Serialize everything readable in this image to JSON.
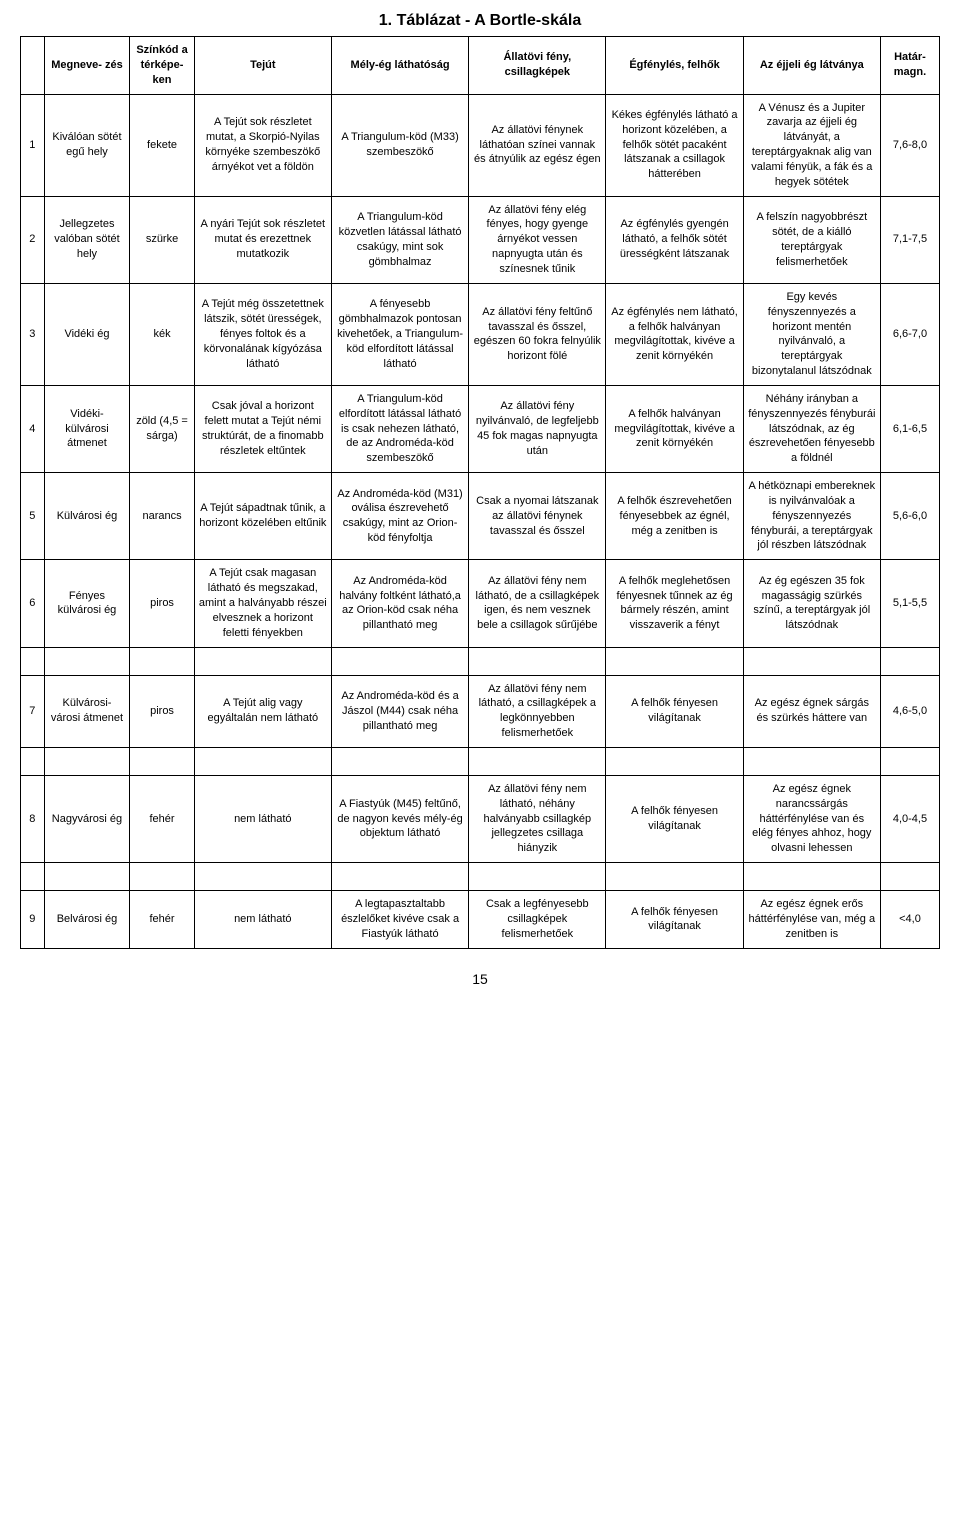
{
  "title": "1. Táblázat - A Bortle-skála",
  "page_number": "15",
  "columns": {
    "num": "",
    "name": "Megneve-\nzés",
    "color": "Színkód a térképe-\nken",
    "milky_way": "Tejút",
    "deep_sky": "Mély-ég láthatóság",
    "zodiacal": "Állatövi fény, csillagképek",
    "airglow": "Égfénylés, felhők",
    "night_sky": "Az éjjeli ég látványa",
    "mag": "Határ-\nmagn."
  },
  "rows": [
    {
      "num": "1",
      "name": "Kiválóan sötét egű hely",
      "color": "fekete",
      "milky_way": "A Tejút sok részletet mutat, a Skorpió-Nyilas környéke szembeszökő árnyékot vet a földön",
      "deep_sky": "A Triangulum-köd (M33) szembeszökő",
      "zodiacal": "Az állatövi fénynek láthatóan színei vannak és átnyúlik az egész égen",
      "airglow": "Kékes égfénylés látható a horizont közelében, a felhők sötét pacaként látszanak a csillagok hátterében",
      "night_sky": "A Vénusz és a Jupiter zavarja az éjjeli ég látványát, a tereptárgyaknak alig van valami fényük, a fák és a hegyek sötétek",
      "mag": "7,6-8,0"
    },
    {
      "num": "2",
      "name": "Jellegzetes valóban sötét hely",
      "color": "szürke",
      "milky_way": "A nyári Tejút sok részletet mutat és erezettnek mutatkozik",
      "deep_sky": "A Triangulum-köd közvetlen látással látható csakúgy, mint sok gömbhalmaz",
      "zodiacal": "Az állatövi fény elég fényes, hogy gyenge árnyékot vessen napnyugta után és színesnek tűnik",
      "airglow": "Az égfénylés gyengén látható, a felhők sötét ürességként látszanak",
      "night_sky": "A felszín nagyobbrészt sötét, de a kiálló tereptárgyak felismerhetőek",
      "mag": "7,1-7,5"
    },
    {
      "num": "3",
      "name": "Vidéki ég",
      "color": "kék",
      "milky_way": "A Tejút még összetettnek látszik, sötét ürességek, fényes foltok és a körvonalának kígyózása látható",
      "deep_sky": "A fényesebb gömbhalmazok pontosan kivehetőek, a Triangulum-köd elfordított látással látható",
      "zodiacal": "Az állatövi fény feltűnő tavasszal és ősszel, egészen 60 fokra felnyúlik horizont fölé",
      "airglow": "Az égfénylés nem látható, a felhők halványan megvilágítottak, kivéve a zenit környékén",
      "night_sky": "Egy kevés fényszennyezés a horizont mentén nyilvánvaló, a tereptárgyak bizonytalanul látszódnak",
      "mag": "6,6-7,0"
    },
    {
      "num": "4",
      "name": "Vidéki-külvárosi átmenet",
      "color": "zöld (4,5 = sárga)",
      "milky_way": "Csak jóval a horizont felett mutat a Tejút némi struktúrát, de a finomabb részletek eltűntek",
      "deep_sky": "A Triangulum-köd elfordított látással látható is csak nehezen látható, de az Androméda-köd szembeszökő",
      "zodiacal": "Az állatövi fény nyilvánvaló, de legfeljebb 45 fok magas napnyugta után",
      "airglow": "A felhők halványan megvilágítottak, kivéve a zenit környékén",
      "night_sky": "Néhány irányban a fényszennyezés fényburái látszódnak, az ég észrevehetően fényesebb a földnél",
      "mag": "6,1-6,5"
    },
    {
      "num": "5",
      "name": "Külvárosi ég",
      "color": "narancs",
      "milky_way": "A Tejút sápadtnak tűnik, a horizont közelében eltűnik",
      "deep_sky": "Az Androméda-köd (M31) oválisa észrevehető csakúgy, mint az Orion-köd fényfoltja",
      "zodiacal": "Csak a nyomai látszanak az állatövi fénynek tavasszal és ősszel",
      "airglow": "A felhők észrevehetően fényesebbek az égnél, még a zenitben is",
      "night_sky": "A hétköznapi embereknek is nyilvánvalóak a fényszennyezés fényburái, a tereptárgyak jól részben látszódnak",
      "mag": "5,6-6,0"
    },
    {
      "num": "6",
      "name": "Fényes külvárosi ég",
      "color": "piros",
      "milky_way": "A Tejút csak magasan látható és megszakad, amint a halványabb részei elvesznek a horizont feletti fényekben",
      "deep_sky": "Az Androméda-köd halvány foltként látható,a az Orion-köd csak néha pillantható meg",
      "zodiacal": "Az állatövi fény nem látható, de a csillagképek igen, és nem vesznek bele a csillagok sűrűjébe",
      "airglow": "A felhők meglehetősen fényesnek tűnnek az ég bármely részén, amint visszaverik a fényt",
      "night_sky": "Az ég egészen 35 fok magasságig szürkés színű, a tereptárgyak jól látszódnak",
      "mag": "5,1-5,5"
    },
    {
      "num": "7",
      "name": "Külvárosi-városi átmenet",
      "color": "piros",
      "milky_way": "A Tejút alig vagy egyáltalán nem látható",
      "deep_sky": "Az Androméda-köd és a Jászol (M44) csak néha pillantható meg",
      "zodiacal": "Az állatövi fény nem látható, a csillagképek a legkönnyebben felismerhetőek",
      "airglow": "A felhők fényesen világítanak",
      "night_sky": "Az egész égnek sárgás és szürkés háttere van",
      "mag": "4,6-5,0"
    },
    {
      "num": "8",
      "name": "Nagyvárosi ég",
      "color": "fehér",
      "milky_way": "nem látható",
      "deep_sky": "A Fiastyúk (M45) feltűnő, de nagyon kevés mély-ég objektum látható",
      "zodiacal": "Az állatövi fény nem látható, néhány halványabb csillagkép jellegzetes csillaga hiányzik",
      "airglow": "A felhők fényesen világítanak",
      "night_sky": "Az egész égnek narancssárgás háttérfénylése van és elég fényes ahhoz, hogy olvasni lehessen",
      "mag": "4,0-4,5"
    },
    {
      "num": "9",
      "name": "Belvárosi ég",
      "color": "fehér",
      "milky_way": "nem látható",
      "deep_sky": "A legtapasztaltabb észlelőket kivéve csak a Fiastyúk látható",
      "zodiacal": "Csak a legfényesebb csillagképek felismerhetőek",
      "airglow": "A felhők fényesen világítanak",
      "night_sky": "Az egész égnek erős háttérfénylése van, még a zenitben is",
      "mag": "<4,0"
    }
  ]
}
